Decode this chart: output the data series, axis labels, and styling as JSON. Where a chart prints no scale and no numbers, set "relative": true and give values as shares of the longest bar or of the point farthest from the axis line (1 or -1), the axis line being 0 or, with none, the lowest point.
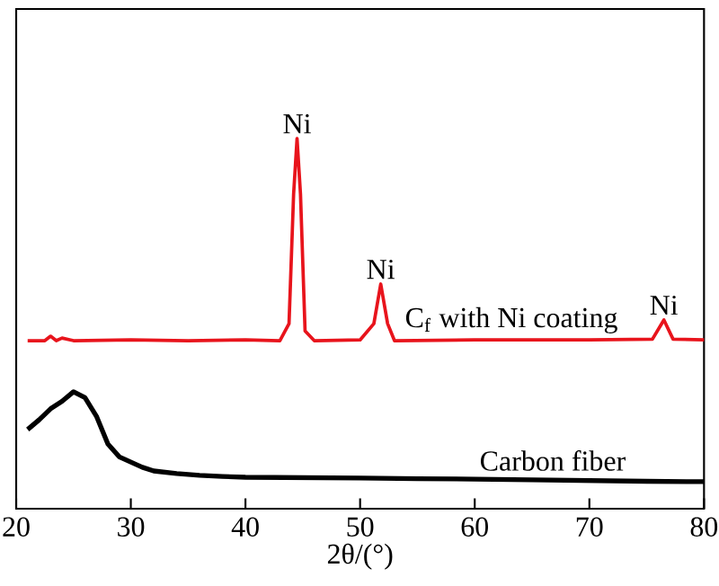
{
  "chart_data": {
    "type": "line",
    "relative": true,
    "xlabel": "2θ/(°)",
    "xlim": [
      20,
      80
    ],
    "xticks": [
      20,
      30,
      40,
      50,
      60,
      70,
      80
    ],
    "tick_labels": "x",
    "marker": "none",
    "line_style": "solid",
    "series": [
      {
        "name": "C$_{f}$ with Ni coating",
        "color": "#e8141c",
        "x": [
          21,
          22.5,
          23,
          23.5,
          24,
          25,
          30,
          35,
          40,
          43,
          43.8,
          44.2,
          44.5,
          44.8,
          45.2,
          46,
          50,
          51.2,
          51.8,
          52.4,
          53,
          60,
          70,
          75.5,
          76.5,
          77.3,
          80
        ],
        "values": [
          0.454,
          0.454,
          0.466,
          0.454,
          0.461,
          0.454,
          0.456,
          0.454,
          0.456,
          0.454,
          0.5,
          0.85,
          1,
          0.85,
          0.48,
          0.454,
          0.456,
          0.5,
          0.607,
          0.5,
          0.454,
          0.456,
          0.456,
          0.458,
          0.51,
          0.458,
          0.456
        ]
      },
      {
        "name": "Carbon fiber",
        "color": "#000000",
        "x": [
          21,
          22,
          23,
          24,
          25,
          26,
          27,
          28,
          29,
          30,
          31,
          32,
          34,
          36,
          38,
          40,
          45,
          50,
          55,
          60,
          65,
          70,
          75,
          80
        ],
        "values": [
          0.214,
          0.24,
          0.27,
          0.29,
          0.316,
          0.3,
          0.25,
          0.175,
          0.14,
          0.126,
          0.112,
          0.102,
          0.095,
          0.09,
          0.087,
          0.085,
          0.084,
          0.083,
          0.081,
          0.08,
          0.078,
          0.076,
          0.074,
          0.073
        ]
      }
    ],
    "annotations": [
      {
        "text": "Ni",
        "x": 44.5,
        "y": 1
      },
      {
        "text": "Ni",
        "x": 51.8,
        "y": 0.607
      },
      {
        "text": "Ni",
        "x": 76.5,
        "y": 0.51
      }
    ]
  }
}
